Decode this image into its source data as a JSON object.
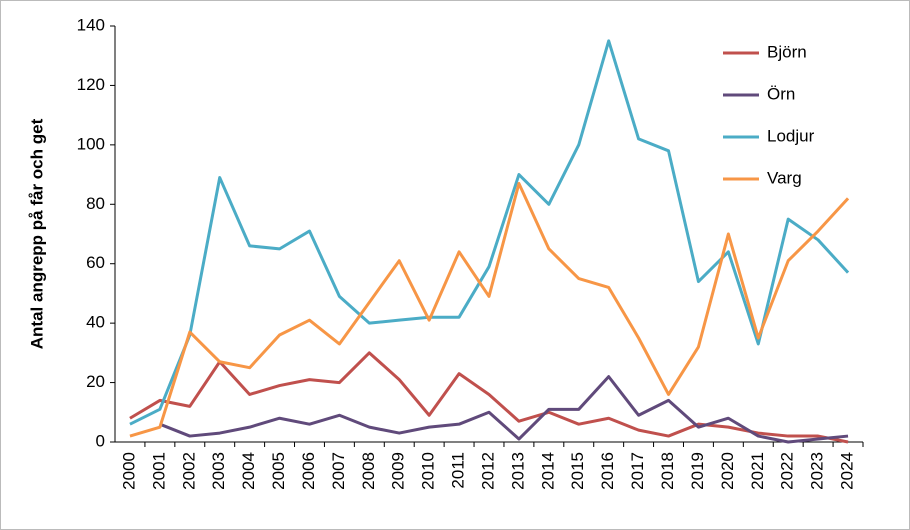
{
  "chart_data": {
    "type": "line",
    "y_label": "Antal angrepp på får och get",
    "categories": [
      "2000",
      "2001",
      "2002",
      "2003",
      "2004",
      "2005",
      "2006",
      "2007",
      "2008",
      "2009",
      "2010",
      "2011",
      "2012",
      "2013",
      "2014",
      "2015",
      "2016",
      "2017",
      "2018",
      "2019",
      "2020",
      "2021",
      "2022",
      "2023",
      "2024"
    ],
    "series": [
      {
        "name": "Björn",
        "color": "#c0504d",
        "values": [
          8,
          14,
          12,
          27,
          16,
          19,
          21,
          20,
          30,
          21,
          9,
          23,
          16,
          7,
          10,
          6,
          8,
          4,
          2,
          6,
          5,
          3,
          2,
          2,
          0
        ]
      },
      {
        "name": "Örn",
        "color": "#604a7b",
        "values": [
          null,
          6,
          2,
          3,
          5,
          8,
          6,
          9,
          5,
          3,
          5,
          6,
          10,
          1,
          11,
          11,
          22,
          9,
          14,
          5,
          8,
          2,
          0,
          1,
          2
        ]
      },
      {
        "name": "Lodjur",
        "color": "#4bacc6",
        "values": [
          6,
          11,
          36,
          89,
          66,
          65,
          71,
          49,
          40,
          41,
          42,
          42,
          59,
          90,
          80,
          100,
          135,
          102,
          98,
          54,
          64,
          33,
          75,
          68,
          57
        ]
      },
      {
        "name": "Varg",
        "color": "#f79646",
        "values": [
          2,
          5,
          37,
          27,
          25,
          36,
          41,
          33,
          47,
          61,
          41,
          64,
          49,
          87,
          65,
          55,
          52,
          35,
          16,
          32,
          70,
          35,
          61,
          71,
          82
        ]
      }
    ],
    "ylim": [
      0,
      140
    ],
    "yticks": [
      0,
      20,
      40,
      60,
      80,
      100,
      120,
      140
    ],
    "grid": false,
    "legend": "top-right"
  }
}
